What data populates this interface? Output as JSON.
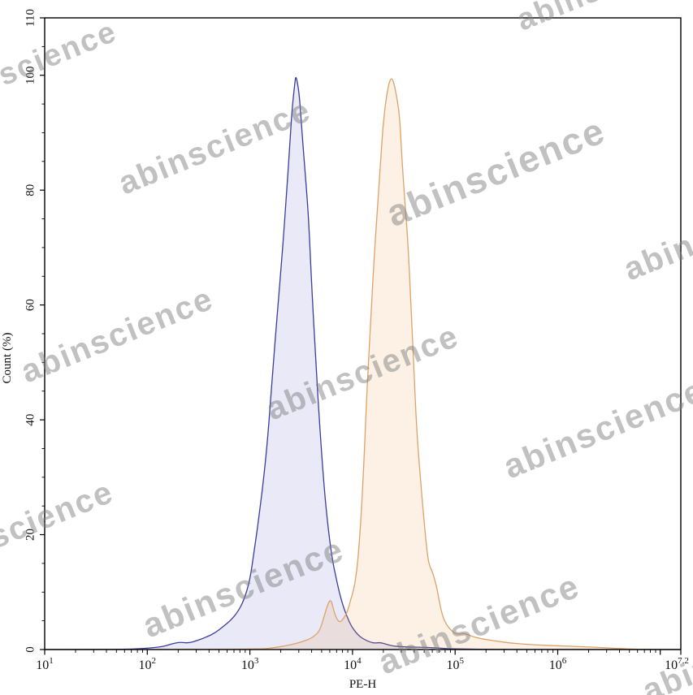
{
  "watermark": {
    "text": "abinscience",
    "color": "#7d7d7d"
  },
  "chart_data": {
    "type": "area",
    "subtype": "flow-cytometry-histogram-overlay",
    "title": "",
    "xlabel": "PE-H",
    "ylabel": "Count (%)",
    "x_scale": "log10",
    "x_domain_log10": [
      1,
      7.2
    ],
    "ylim": [
      0,
      110
    ],
    "grid": false,
    "legend": false,
    "x_ticks": [
      {
        "log10": 1,
        "base": "10",
        "exp": "1"
      },
      {
        "log10": 2,
        "base": "10",
        "exp": "2"
      },
      {
        "log10": 3,
        "base": "10",
        "exp": "3"
      },
      {
        "log10": 4,
        "base": "10",
        "exp": "4"
      },
      {
        "log10": 5,
        "base": "10",
        "exp": "5"
      },
      {
        "log10": 6,
        "base": "10",
        "exp": "6"
      },
      {
        "log10": 7,
        "base": "",
        "exp": ""
      },
      {
        "log10": 7.2,
        "base": "10",
        "exp": "7.2"
      }
    ],
    "x_minor_ticks_per_decade": [
      2,
      3,
      4,
      5,
      6,
      7,
      8,
      9
    ],
    "y_ticks": [
      0,
      20,
      40,
      60,
      80,
      100,
      110
    ],
    "y_minor_step": 5,
    "series": [
      {
        "name": "blue-histogram",
        "stroke": "#3c3c9e",
        "fill": "rgba(85,85,190,0.13)",
        "peak_x_value": 2750,
        "peak_y_pct": 100,
        "points_log10x_ypct": [
          [
            1.0,
            0
          ],
          [
            1.75,
            0
          ],
          [
            1.99,
            0.2
          ],
          [
            2.15,
            0.5
          ],
          [
            2.24,
            1.0
          ],
          [
            2.32,
            1.3
          ],
          [
            2.4,
            1.1
          ],
          [
            2.49,
            1.6
          ],
          [
            2.58,
            2.2
          ],
          [
            2.66,
            2.9
          ],
          [
            2.74,
            4.0
          ],
          [
            2.82,
            5.2
          ],
          [
            2.88,
            6.5
          ],
          [
            2.94,
            8.5
          ],
          [
            3.0,
            12
          ],
          [
            3.04,
            17
          ],
          [
            3.08,
            22
          ],
          [
            3.13,
            29
          ],
          [
            3.18,
            38
          ],
          [
            3.22,
            48
          ],
          [
            3.27,
            59
          ],
          [
            3.32,
            70
          ],
          [
            3.36,
            80
          ],
          [
            3.39,
            88
          ],
          [
            3.41,
            94
          ],
          [
            3.44,
            99
          ],
          [
            3.45,
            100
          ],
          [
            3.48,
            97
          ],
          [
            3.5,
            92
          ],
          [
            3.53,
            85
          ],
          [
            3.57,
            76
          ],
          [
            3.6,
            64
          ],
          [
            3.64,
            51
          ],
          [
            3.68,
            39
          ],
          [
            3.72,
            29
          ],
          [
            3.76,
            21.5
          ],
          [
            3.8,
            16
          ],
          [
            3.84,
            12.5
          ],
          [
            3.87,
            10
          ],
          [
            3.91,
            7.5
          ],
          [
            3.95,
            5.6
          ],
          [
            3.99,
            4.0
          ],
          [
            4.05,
            2.6
          ],
          [
            4.1,
            1.9
          ],
          [
            4.17,
            1.3
          ],
          [
            4.22,
            1.1
          ],
          [
            4.27,
            1.25
          ],
          [
            4.33,
            0.9
          ],
          [
            4.4,
            0.6
          ],
          [
            4.52,
            0.45
          ],
          [
            4.68,
            0.4
          ],
          [
            4.81,
            0.3
          ],
          [
            4.92,
            0.15
          ],
          [
            5.08,
            0.08
          ],
          [
            5.39,
            0.04
          ],
          [
            5.79,
            0
          ],
          [
            7.2,
            0
          ]
        ]
      },
      {
        "name": "orange-histogram",
        "stroke": "#dca26a",
        "fill": "rgba(235,165,90,0.16)",
        "peak_x_value": 24000,
        "peak_y_pct": 100,
        "points_log10x_ypct": [
          [
            1.0,
            0
          ],
          [
            3.1,
            0
          ],
          [
            3.22,
            0.3
          ],
          [
            3.34,
            0.6
          ],
          [
            3.44,
            1.0
          ],
          [
            3.53,
            1.5
          ],
          [
            3.59,
            1.9
          ],
          [
            3.64,
            2.5
          ],
          [
            3.68,
            3.3
          ],
          [
            3.72,
            5.5
          ],
          [
            3.76,
            8.0
          ],
          [
            3.79,
            8.8
          ],
          [
            3.82,
            6.6
          ],
          [
            3.85,
            5.2
          ],
          [
            3.88,
            4.7
          ],
          [
            3.92,
            5.6
          ],
          [
            3.95,
            6.6
          ],
          [
            3.98,
            8.5
          ],
          [
            4.02,
            11
          ],
          [
            4.05,
            15
          ],
          [
            4.08,
            22
          ],
          [
            4.11,
            32
          ],
          [
            4.14,
            45
          ],
          [
            4.18,
            58
          ],
          [
            4.21,
            68
          ],
          [
            4.24,
            76
          ],
          [
            4.27,
            84
          ],
          [
            4.3,
            92
          ],
          [
            4.34,
            97.5
          ],
          [
            4.38,
            100
          ],
          [
            4.42,
            97.5
          ],
          [
            4.46,
            93
          ],
          [
            4.48,
            86
          ],
          [
            4.51,
            78
          ],
          [
            4.54,
            71
          ],
          [
            4.57,
            60
          ],
          [
            4.6,
            48
          ],
          [
            4.63,
            37
          ],
          [
            4.67,
            28
          ],
          [
            4.71,
            20
          ],
          [
            4.74,
            15
          ],
          [
            4.78,
            13.5
          ],
          [
            4.82,
            11
          ],
          [
            4.85,
            8
          ],
          [
            4.88,
            5.7
          ],
          [
            4.92,
            4.2
          ],
          [
            4.97,
            3.2
          ],
          [
            5.02,
            2.6
          ],
          [
            5.09,
            2.9
          ],
          [
            5.16,
            2.3
          ],
          [
            5.25,
            1.9
          ],
          [
            5.39,
            1.5
          ],
          [
            5.55,
            1.1
          ],
          [
            5.75,
            0.85
          ],
          [
            5.99,
            0.65
          ],
          [
            6.23,
            0.5
          ],
          [
            6.42,
            0.35
          ],
          [
            6.6,
            0.18
          ],
          [
            6.74,
            0.05
          ],
          [
            6.9,
            0
          ],
          [
            7.2,
            0
          ]
        ]
      }
    ]
  }
}
